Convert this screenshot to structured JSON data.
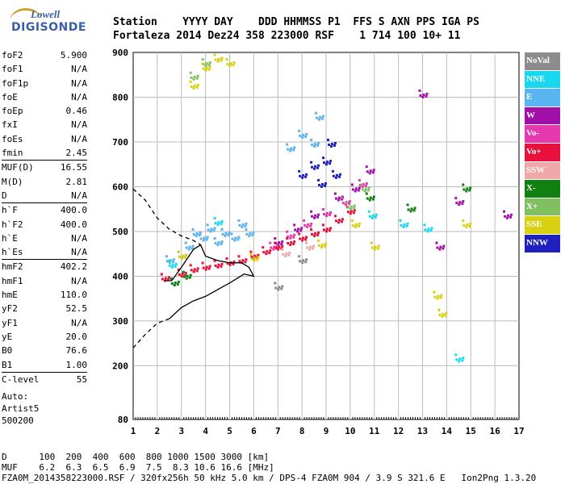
{
  "logo": {
    "line1": "Lowell",
    "line2": "DIGISONDE"
  },
  "header": {
    "line1": "Station    YYYY DAY    DDD HHMMSS P1  FFS S AXN PPS IGA PS",
    "line2": "Fortaleza 2014 Dez24 358 223000 RSF    1 714 100 10+ 11"
  },
  "params": [
    [
      {
        "name": "foF2",
        "value": "5.900"
      },
      {
        "name": "foF1",
        "value": "N/A"
      },
      {
        "name": "foF1p",
        "value": "N/A"
      },
      {
        "name": "foE",
        "value": "N/A"
      },
      {
        "name": "foEp",
        "value": "0.46"
      },
      {
        "name": "fxI",
        "value": "N/A"
      },
      {
        "name": "foEs",
        "value": "N/A"
      },
      {
        "name": "fmin",
        "value": "2.45"
      }
    ],
    [
      {
        "name": "MUF(D)",
        "value": "16.55"
      },
      {
        "name": "M(D)",
        "value": "2.81"
      },
      {
        "name": "D",
        "value": "N/A"
      }
    ],
    [
      {
        "name": "h`F",
        "value": "400.0"
      },
      {
        "name": "h`F2",
        "value": "400.0"
      },
      {
        "name": "h`E",
        "value": "N/A"
      },
      {
        "name": "h`Es",
        "value": "N/A"
      }
    ],
    [
      {
        "name": "hmF2",
        "value": "402.2"
      },
      {
        "name": "hmF1",
        "value": "N/A"
      },
      {
        "name": "hmE",
        "value": "110.0"
      },
      {
        "name": "yF2",
        "value": "52.5"
      },
      {
        "name": "yF1",
        "value": "N/A"
      },
      {
        "name": "yE",
        "value": "20.0"
      },
      {
        "name": "B0",
        "value": "76.6"
      },
      {
        "name": "B1",
        "value": "1.00"
      }
    ],
    [
      {
        "name": "C-level",
        "value": "55"
      }
    ]
  ],
  "auto": {
    "line1": "Auto:",
    "line2": "Artist5",
    "line3": "500200"
  },
  "legend": [
    {
      "label": "NoVal",
      "color": "#8c8c8c"
    },
    {
      "label": "NNE",
      "color": "#18d8f0"
    },
    {
      "label": "E",
      "color": "#5ab4f0"
    },
    {
      "label": "W",
      "color": "#a010a8"
    },
    {
      "label": "Vo-",
      "color": "#e838b0"
    },
    {
      "label": "Vo+",
      "color": "#e8103c"
    },
    {
      "label": "SSW",
      "color": "#f0a8a8"
    },
    {
      "label": "X-",
      "color": "#108010"
    },
    {
      "label": "X+",
      "color": "#80c060"
    },
    {
      "label": "SSE",
      "color": "#d8d010"
    },
    {
      "label": "NNW",
      "color": "#2020c0"
    }
  ],
  "footer": {
    "line1": "D      100  200  400  600  800 1000 1500 3000 [km]",
    "line2": "MUF    6.2  6.3  6.5  6.9  7.5  8.3 10.6 16.6 [MHz]",
    "line3": "FZA0M_2014358223000.RSF / 320fx256h 50 kHz 5.0 km / DPS-4 FZA0M 904 / 3.9 S 321.6 E   Ion2Png 1.3.20"
  },
  "chart_data": {
    "type": "scatter",
    "xlim": [
      1,
      17
    ],
    "ylim": [
      80,
      900
    ],
    "x_ticks": [
      "1",
      "2",
      "3",
      "4",
      "5",
      "6",
      "7",
      "8",
      "9",
      "10",
      "11",
      "12",
      "13",
      "14",
      "15",
      "16",
      "17"
    ],
    "y_ticks": [
      "80",
      "200",
      "300",
      "400",
      "500",
      "600",
      "700",
      "800",
      "900"
    ],
    "grid": true,
    "legend_position": "right",
    "series": [
      {
        "name": "E",
        "color": "#5ab4f0",
        "points": [
          [
            2.5,
            440
          ],
          [
            3.0,
            450
          ],
          [
            3.3,
            470
          ],
          [
            3.6,
            500
          ],
          [
            3.9,
            490
          ],
          [
            4.2,
            510
          ],
          [
            4.5,
            480
          ],
          [
            4.8,
            500
          ],
          [
            5.2,
            490
          ],
          [
            5.5,
            520
          ],
          [
            5.8,
            500
          ],
          [
            7.5,
            690
          ],
          [
            8.0,
            720
          ],
          [
            8.5,
            700
          ],
          [
            8.7,
            760
          ]
        ]
      },
      {
        "name": "NNE",
        "color": "#18d8f0",
        "points": [
          [
            2.6,
            430
          ],
          [
            4.5,
            525
          ],
          [
            10.9,
            540
          ],
          [
            12.2,
            520
          ],
          [
            13.2,
            510
          ],
          [
            14.5,
            220
          ]
        ]
      },
      {
        "name": "NNW",
        "color": "#2020c0",
        "points": [
          [
            8.0,
            630
          ],
          [
            8.5,
            650
          ],
          [
            9.0,
            660
          ],
          [
            9.2,
            700
          ],
          [
            9.4,
            630
          ],
          [
            8.8,
            610
          ]
        ]
      },
      {
        "name": "W",
        "color": "#a010a8",
        "points": [
          [
            7.0,
            480
          ],
          [
            7.8,
            510
          ],
          [
            8.5,
            540
          ],
          [
            9.5,
            580
          ],
          [
            10.2,
            600
          ],
          [
            10.8,
            640
          ],
          [
            13.0,
            810
          ],
          [
            13.7,
            470
          ],
          [
            14.5,
            570
          ],
          [
            16.5,
            540
          ]
        ]
      },
      {
        "name": "Vo-",
        "color": "#e838b0",
        "points": [
          [
            6.8,
            470
          ],
          [
            7.5,
            495
          ],
          [
            8.2,
            520
          ],
          [
            9.0,
            545
          ],
          [
            9.8,
            570
          ],
          [
            10.5,
            610
          ]
        ]
      },
      {
        "name": "Vo+",
        "color": "#e8103c",
        "points": [
          [
            2.3,
            400
          ],
          [
            3.0,
            410
          ],
          [
            3.5,
            420
          ],
          [
            4.0,
            425
          ],
          [
            4.5,
            430
          ],
          [
            5.0,
            435
          ],
          [
            5.5,
            440
          ],
          [
            6.0,
            450
          ],
          [
            6.5,
            460
          ],
          [
            7.0,
            470
          ],
          [
            7.5,
            480
          ],
          [
            8.0,
            490
          ],
          [
            8.5,
            500
          ],
          [
            9.0,
            510
          ],
          [
            9.5,
            530
          ],
          [
            10.0,
            550
          ]
        ]
      },
      {
        "name": "X-",
        "color": "#108010",
        "points": [
          [
            2.7,
            390
          ],
          [
            3.2,
            405
          ],
          [
            10.8,
            580
          ],
          [
            12.5,
            555
          ],
          [
            14.8,
            600
          ]
        ]
      },
      {
        "name": "X+",
        "color": "#80c060",
        "points": [
          [
            3.5,
            850
          ],
          [
            4.0,
            880
          ],
          [
            10.0,
            560
          ],
          [
            10.6,
            600
          ]
        ]
      },
      {
        "name": "SSE",
        "color": "#d8d010",
        "points": [
          [
            3.5,
            830
          ],
          [
            4.0,
            870
          ],
          [
            4.5,
            890
          ],
          [
            5.0,
            880
          ],
          [
            3.0,
            450
          ],
          [
            6.0,
            445
          ],
          [
            8.8,
            475
          ],
          [
            10.2,
            520
          ],
          [
            11.0,
            470
          ],
          [
            13.6,
            360
          ],
          [
            13.8,
            320
          ],
          [
            14.8,
            520
          ]
        ]
      },
      {
        "name": "SSW",
        "color": "#f0a8a8",
        "points": [
          [
            7.3,
            455
          ],
          [
            8.3,
            470
          ]
        ]
      },
      {
        "name": "NoVal",
        "color": "#8c8c8c",
        "points": [
          [
            7.0,
            380
          ],
          [
            8.0,
            440
          ]
        ]
      }
    ],
    "trace_solid": [
      [
        2.3,
        390
      ],
      [
        2.6,
        390
      ],
      [
        3.0,
        420
      ],
      [
        3.5,
        460
      ],
      [
        3.8,
        470
      ],
      [
        4.0,
        445
      ],
      [
        4.5,
        435
      ],
      [
        5.0,
        430
      ],
      [
        5.5,
        430
      ],
      [
        5.8,
        420
      ],
      [
        6.0,
        400
      ],
      [
        5.6,
        405
      ],
      [
        5.0,
        385
      ],
      [
        4.5,
        370
      ],
      [
        4.0,
        355
      ],
      [
        3.5,
        345
      ],
      [
        3.0,
        330
      ],
      [
        2.5,
        305
      ]
    ],
    "trace_dashed_upper": [
      [
        1.0,
        595
      ],
      [
        1.5,
        570
      ],
      [
        2.0,
        530
      ],
      [
        2.5,
        505
      ],
      [
        3.0,
        490
      ],
      [
        3.5,
        480
      ],
      [
        3.8,
        470
      ]
    ],
    "trace_dashed_lower": [
      [
        1.0,
        240
      ],
      [
        1.5,
        270
      ],
      [
        2.0,
        295
      ],
      [
        2.5,
        305
      ]
    ]
  }
}
